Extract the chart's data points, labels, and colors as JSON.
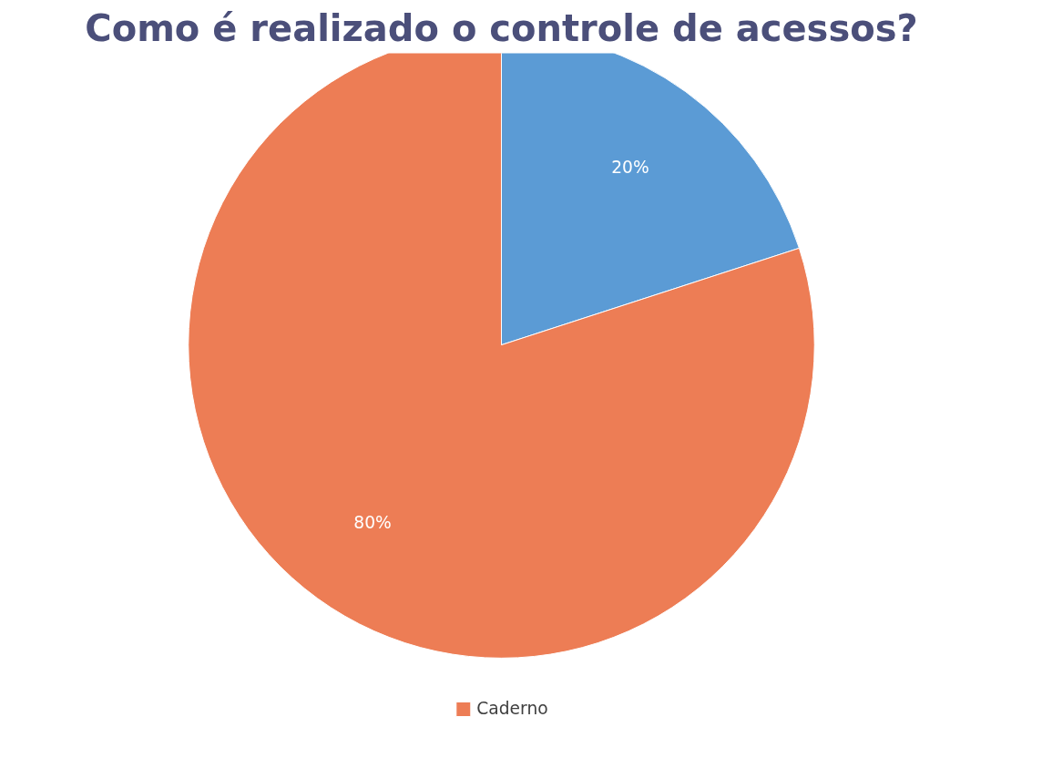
{
  "chart_data": {
    "type": "pie",
    "title": "Como é realizado o controle de acessos?",
    "categories": [
      null,
      "Caderno"
    ],
    "values": [
      20,
      80
    ],
    "colors": [
      "#5b9bd5",
      "#ed7d55"
    ],
    "value_labels": [
      "20%",
      "80%"
    ],
    "legend": "bottom"
  }
}
